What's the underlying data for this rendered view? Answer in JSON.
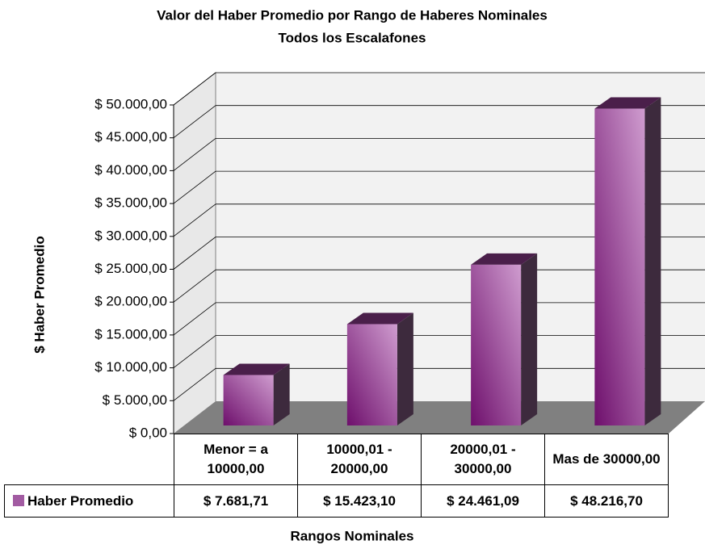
{
  "chart_data": {
    "type": "bar3d",
    "title": "Valor del Haber Promedio por Rango de Haberes Nominales",
    "subtitle": "Todos los Escalafones",
    "y_label": "$ Haber Promedio",
    "x_label": "Rangos Nominales",
    "categories": [
      "Menor = a 10000,00",
      "10000,01 - 20000,00",
      "20000,01 - 30000,00",
      "Mas de 30000,00"
    ],
    "series": [
      {
        "name": "Haber Promedio",
        "color": "#a25ba2",
        "values": [
          7681.71,
          15423.1,
          24461.09,
          48216.7
        ],
        "value_labels": [
          "$ 7.681,71",
          "$ 15.423,10",
          "$ 24.461,09",
          "$ 48.216,70"
        ]
      }
    ],
    "ylim": [
      0,
      50000
    ],
    "yticks": [
      {
        "value": 0,
        "label": "$ 0,00"
      },
      {
        "value": 5000,
        "label": "$ 5.000,00"
      },
      {
        "value": 10000,
        "label": "$ 10.000,00"
      },
      {
        "value": 15000,
        "label": "$ 15.000,00"
      },
      {
        "value": 20000,
        "label": "$ 20.000,00"
      },
      {
        "value": 25000,
        "label": "$ 25.000,00"
      },
      {
        "value": 30000,
        "label": "$ 30.000,00"
      },
      {
        "value": 35000,
        "label": "$ 35.000,00"
      },
      {
        "value": 40000,
        "label": "$ 40.000,00"
      },
      {
        "value": 45000,
        "label": "$ 45.000,00"
      },
      {
        "value": 50000,
        "label": "$ 50.000,00"
      }
    ],
    "grid": true
  }
}
